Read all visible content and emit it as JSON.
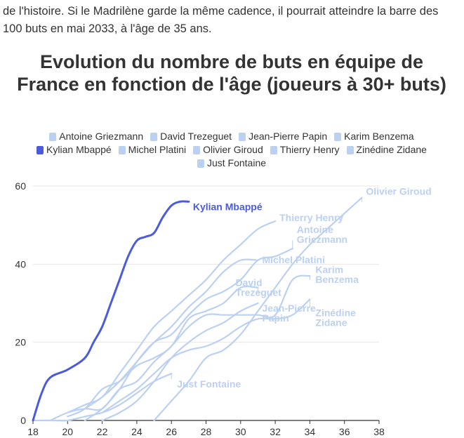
{
  "intro_text": "de l'histoire. Si le Madrilène garde la même cadence, il pourrait atteindre la barre des 100 buts en mai 2033, à l'âge de 35 ans.",
  "chart_data": {
    "type": "line",
    "title": "Evolution du nombre de buts en équipe de France en fonction de l'âge (joueurs à 30+ buts)",
    "xlabel": "",
    "ylabel": "",
    "xlim": [
      18,
      38
    ],
    "ylim": [
      0,
      60
    ],
    "x_ticks": [
      18,
      20,
      22,
      24,
      26,
      28,
      30,
      32,
      34,
      36,
      38
    ],
    "y_ticks": [
      0,
      20,
      40,
      60
    ],
    "grid": "horizontal",
    "legend_position": "top",
    "highlight_color": "#4a5bdc",
    "muted_color": "#bcd1f1",
    "legend": [
      "Antoine Griezmann",
      "David Trezeguet",
      "Jean-Pierre Papin",
      "Karim Benzema",
      "Kylian Mbappé",
      "Michel Platini",
      "Olivier Giroud",
      "Thierry Henry",
      "Zinédine Zidane",
      "Just Fontaine"
    ],
    "series": [
      {
        "name": "Antoine Griezmann",
        "label": "Antoine\nGriezmann",
        "highlight": false,
        "x": [
          21,
          22,
          23,
          24,
          25,
          26,
          27,
          28,
          29,
          30,
          31,
          32,
          33
        ],
        "y": [
          0,
          3,
          8,
          15,
          20,
          22,
          27,
          31,
          33,
          36,
          41,
          42,
          44
        ]
      },
      {
        "name": "David Trezeguet",
        "label": "David\nTrezeguet",
        "highlight": false,
        "x": [
          20,
          21,
          22,
          23,
          24,
          25,
          26,
          27,
          28,
          29,
          30,
          31
        ],
        "y": [
          1,
          3,
          8,
          10,
          14,
          16,
          19,
          26,
          28,
          30,
          34,
          34
        ]
      },
      {
        "name": "Jean-Pierre Papin",
        "label": "Jean-Pierre\nPapin",
        "highlight": false,
        "x": [
          22,
          23,
          24,
          25,
          26,
          27,
          28,
          29,
          30,
          31
        ],
        "y": [
          0,
          2,
          5,
          10,
          16,
          20,
          23,
          25,
          28,
          30
        ]
      },
      {
        "name": "Karim Benzema",
        "label": "Karim\nBenzema",
        "highlight": false,
        "x": [
          19,
          20,
          21,
          22,
          23,
          24,
          25,
          26,
          27,
          28,
          29,
          30,
          31,
          32,
          33,
          34
        ],
        "y": [
          0,
          2,
          3,
          3,
          8,
          10,
          15,
          19,
          24,
          27,
          27,
          27,
          27,
          27,
          36,
          37
        ]
      },
      {
        "name": "Kylian Mbappé",
        "label": "Kylian Mbappé",
        "highlight": true,
        "x": [
          18,
          18.5,
          19,
          20,
          21,
          21.5,
          22,
          22.5,
          23,
          23.5,
          24,
          24.5,
          25,
          25.5,
          26,
          26.5,
          27
        ],
        "y": [
          0,
          7,
          11,
          13,
          16,
          20,
          24,
          30,
          36,
          42,
          46,
          47,
          48,
          52,
          55,
          56,
          56
        ]
      },
      {
        "name": "Michel Platini",
        "label": "Michel Platini",
        "highlight": false,
        "x": [
          21,
          22,
          23,
          24,
          25,
          26,
          27,
          28,
          29,
          30,
          31
        ],
        "y": [
          3,
          6,
          10,
          15,
          20,
          24,
          29,
          33,
          38,
          41,
          41
        ]
      },
      {
        "name": "Olivier Giroud",
        "label": "Olivier Giroud",
        "highlight": false,
        "x": [
          25,
          26,
          27,
          28,
          29,
          30,
          31,
          32,
          33,
          34,
          35,
          36,
          37
        ],
        "y": [
          0,
          5,
          10,
          16,
          18,
          22,
          28,
          34,
          40,
          45,
          49,
          53,
          57
        ]
      },
      {
        "name": "Thierry Henry",
        "label": "Thierry Henry",
        "highlight": false,
        "x": [
          20,
          21,
          22,
          23,
          24,
          25,
          26,
          27,
          28,
          29,
          30,
          31,
          32
        ],
        "y": [
          2,
          4,
          6,
          12,
          18,
          24,
          28,
          32,
          36,
          41,
          45,
          49,
          51
        ]
      },
      {
        "name": "Zinédine Zidane",
        "label": "Zinédine\nZidane",
        "highlight": false,
        "x": [
          22,
          23,
          24,
          25,
          26,
          27,
          28,
          29,
          30,
          31,
          32,
          33,
          34
        ],
        "y": [
          2,
          5,
          8,
          12,
          16,
          18,
          19,
          21,
          24,
          26,
          26,
          27,
          31
        ]
      },
      {
        "name": "Just Fontaine",
        "label": "Just Fontaine",
        "highlight": false,
        "x": [
          18,
          19,
          20,
          21,
          22,
          23,
          24,
          25,
          26
        ],
        "y": [
          0,
          0,
          0,
          1,
          2,
          4,
          7,
          10,
          12
        ]
      }
    ]
  }
}
